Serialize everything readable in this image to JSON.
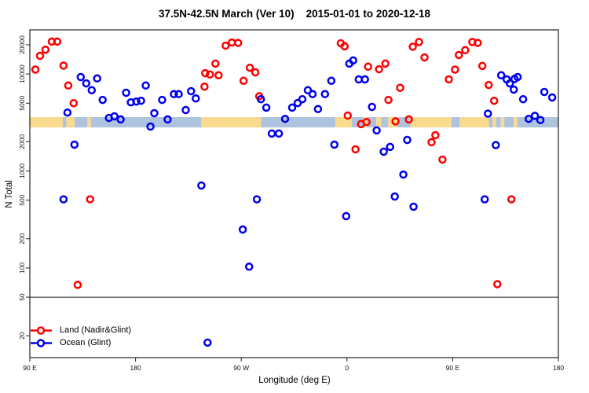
{
  "chart_data": {
    "type": "scatter",
    "title": "37.5N-42.5N March (Ver 10)    2015-01-01 to 2020-12-18",
    "xlabel": "Longitude (deg E)",
    "ylabel": "N Total",
    "x_axis": {
      "lim": [
        90,
        540
      ],
      "ticks": [
        {
          "value": 90,
          "label": "90 E"
        },
        {
          "value": 180,
          "label": "180"
        },
        {
          "value": 270,
          "label": "90 W"
        },
        {
          "value": 360,
          "label": "0"
        },
        {
          "value": 450,
          "label": "90 E"
        },
        {
          "value": 540,
          "label": "180"
        }
      ]
    },
    "y_axis": {
      "scale": "log",
      "lim": [
        11.9,
        28500
      ],
      "ticks": [
        {
          "value": 20000,
          "label": "20000"
        },
        {
          "value": 10000,
          "label": "10000"
        },
        {
          "value": 5000,
          "label": "5000"
        },
        {
          "value": 2000,
          "label": "2000"
        },
        {
          "value": 1000,
          "label": "1000"
        },
        {
          "value": 500,
          "label": "500"
        },
        {
          "value": 200,
          "label": "200"
        },
        {
          "value": 100,
          "label": "100"
        },
        {
          "value": 50,
          "label": "50"
        },
        {
          "value": 20,
          "label": "20"
        }
      ]
    },
    "reference_line_y": 50,
    "coast_band": {
      "y_top_value": 3590,
      "y_bottom_value": 2810,
      "land_color": "#FADA8E",
      "ocean_color": "#AEC3DD",
      "segments": [
        [
          90,
          118,
          "land"
        ],
        [
          118,
          121,
          "ocean"
        ],
        [
          121,
          128,
          "land"
        ],
        [
          128,
          139,
          "ocean"
        ],
        [
          139,
          142,
          "land"
        ],
        [
          142,
          236,
          "ocean"
        ],
        [
          236,
          287,
          "land"
        ],
        [
          287,
          350,
          "ocean"
        ],
        [
          350,
          364,
          "land"
        ],
        [
          364,
          374,
          "ocean"
        ],
        [
          374,
          377,
          "land"
        ],
        [
          377,
          385,
          "ocean"
        ],
        [
          385,
          389,
          "land"
        ],
        [
          389,
          395,
          "ocean"
        ],
        [
          395,
          403,
          "land"
        ],
        [
          403,
          414,
          "ocean"
        ],
        [
          414,
          449,
          "land"
        ],
        [
          449,
          456,
          "ocean"
        ],
        [
          456,
          481,
          "land"
        ],
        [
          481,
          484,
          "ocean"
        ],
        [
          484,
          487,
          "land"
        ],
        [
          487,
          491,
          "ocean"
        ],
        [
          491,
          494,
          "land"
        ],
        [
          494,
          502,
          "ocean"
        ],
        [
          502,
          505,
          "land"
        ],
        [
          505,
          540,
          "ocean"
        ]
      ]
    },
    "series": [
      {
        "name": "Land (Nadir&Glint)",
        "color": "#FF0000",
        "points": [
          [
            94.7,
            11100
          ],
          [
            98.7,
            15400
          ],
          [
            103.3,
            17800
          ],
          [
            108.7,
            21600
          ],
          [
            113.3,
            21600
          ],
          [
            118.7,
            12200
          ],
          [
            122.7,
            7600
          ],
          [
            127.3,
            5000
          ],
          [
            130.7,
            67
          ],
          [
            141.3,
            510
          ],
          [
            238.7,
            7400
          ],
          [
            239.3,
            10200
          ],
          [
            243.3,
            9900
          ],
          [
            248,
            12800
          ],
          [
            250.7,
            9700
          ],
          [
            256.7,
            19600
          ],
          [
            262,
            21100
          ],
          [
            267.3,
            20900
          ],
          [
            272,
            8500
          ],
          [
            277.3,
            11600
          ],
          [
            282,
            10400
          ],
          [
            285.3,
            5900
          ],
          [
            354.7,
            20700
          ],
          [
            358,
            19300
          ],
          [
            360.7,
            3730
          ],
          [
            367.3,
            1670
          ],
          [
            372,
            3040
          ],
          [
            376.7,
            3200
          ],
          [
            378,
            11900
          ],
          [
            387.3,
            11200
          ],
          [
            392.7,
            12800
          ],
          [
            395.3,
            5400
          ],
          [
            401.3,
            3250
          ],
          [
            405.3,
            7200
          ],
          [
            412.7,
            3400
          ],
          [
            416,
            19100
          ],
          [
            421.3,
            21400
          ],
          [
            426,
            14800
          ],
          [
            432,
            1980
          ],
          [
            435.3,
            2340
          ],
          [
            441.3,
            1310
          ],
          [
            446.7,
            8800
          ],
          [
            452,
            11100
          ],
          [
            455.3,
            15700
          ],
          [
            460.7,
            17600
          ],
          [
            466.7,
            21400
          ],
          [
            471.3,
            20900
          ],
          [
            475.3,
            12100
          ],
          [
            480.7,
            7700
          ],
          [
            485.3,
            5300
          ],
          [
            488,
            68
          ],
          [
            500,
            510
          ]
        ]
      },
      {
        "name": "Ocean (Glint)",
        "color": "#0000EE",
        "points": [
          [
            118.7,
            510
          ],
          [
            122,
            4000
          ],
          [
            128,
            1870
          ],
          [
            133.3,
            9300
          ],
          [
            138,
            8000
          ],
          [
            142.7,
            6800
          ],
          [
            147.3,
            9000
          ],
          [
            152,
            5400
          ],
          [
            157.3,
            3520
          ],
          [
            162,
            3660
          ],
          [
            167.3,
            3400
          ],
          [
            172,
            6400
          ],
          [
            176,
            5100
          ],
          [
            180.7,
            5200
          ],
          [
            184.7,
            5300
          ],
          [
            188.7,
            7600
          ],
          [
            192.7,
            2870
          ],
          [
            196,
            3940
          ],
          [
            202.7,
            5400
          ],
          [
            207.3,
            3400
          ],
          [
            212.7,
            6200
          ],
          [
            216.7,
            6200
          ],
          [
            222.7,
            4250
          ],
          [
            227.3,
            6650
          ],
          [
            231.3,
            5600
          ],
          [
            236,
            708
          ],
          [
            241.3,
            17
          ],
          [
            271.3,
            249
          ],
          [
            276.7,
            103
          ],
          [
            283.3,
            510
          ],
          [
            286.7,
            5500
          ],
          [
            291.3,
            4500
          ],
          [
            296,
            2430
          ],
          [
            302,
            2430
          ],
          [
            307.3,
            3450
          ],
          [
            313.3,
            4500
          ],
          [
            318,
            5020
          ],
          [
            322,
            5500
          ],
          [
            326.7,
            6800
          ],
          [
            330.7,
            6200
          ],
          [
            335.3,
            4350
          ],
          [
            341.3,
            6200
          ],
          [
            346.7,
            8500
          ],
          [
            349.3,
            1870
          ],
          [
            359.3,
            342
          ],
          [
            362,
            12800
          ],
          [
            365.3,
            13800
          ],
          [
            370,
            8800
          ],
          [
            375.3,
            8800
          ],
          [
            381.3,
            4580
          ],
          [
            385.3,
            2620
          ],
          [
            391.3,
            1580
          ],
          [
            396.7,
            1770
          ],
          [
            400.7,
            546
          ],
          [
            408,
            918
          ],
          [
            411.3,
            2090
          ],
          [
            416.7,
            428
          ],
          [
            477.3,
            510
          ],
          [
            480,
            3900
          ],
          [
            486.7,
            1850
          ],
          [
            491.3,
            9700
          ],
          [
            496,
            8800
          ],
          [
            498.7,
            8000
          ],
          [
            502,
            6900
          ],
          [
            502.7,
            8900
          ],
          [
            505.3,
            9300
          ],
          [
            510,
            5500
          ],
          [
            514.7,
            3450
          ],
          [
            520,
            3700
          ],
          [
            524.7,
            3350
          ],
          [
            528,
            6530
          ],
          [
            534.7,
            5730
          ]
        ]
      }
    ],
    "legend": {
      "position": "bottom-left",
      "items": [
        "Land (Nadir&Glint)",
        "Ocean (Glint)"
      ]
    }
  }
}
